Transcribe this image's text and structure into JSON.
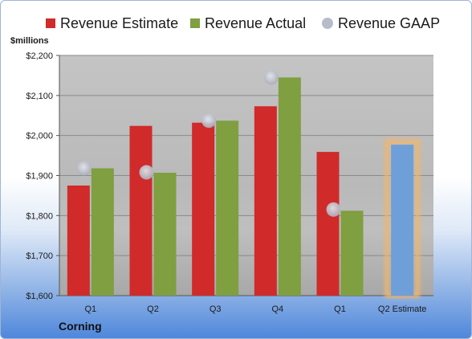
{
  "units_label": "$millions",
  "company": "Corning",
  "legend": [
    {
      "label": "Revenue Estimate",
      "color": "#d02a2a",
      "shape": "square"
    },
    {
      "label": "Revenue Actual",
      "color": "#7f9f40",
      "shape": "square"
    },
    {
      "label": "Revenue GAAP",
      "color": "#b8bcc8",
      "shape": "circle"
    }
  ],
  "chart_data": {
    "type": "bar",
    "title": "",
    "xlabel": "",
    "ylabel": "$millions",
    "ylim": [
      1600,
      2200
    ],
    "yticks": [
      "$1,600",
      "$1,700",
      "$1,800",
      "$1,900",
      "$2,000",
      "$2,100",
      "$2,200"
    ],
    "grid": true,
    "legend_position": "top",
    "categories": [
      "Q1",
      "Q2",
      "Q3",
      "Q4",
      "Q1",
      "Q2 Estimate"
    ],
    "series": [
      {
        "name": "Revenue Estimate",
        "type": "bar",
        "color": "#d02a2a",
        "values": [
          1875,
          2024,
          2032,
          2073,
          1959,
          null
        ]
      },
      {
        "name": "Revenue Actual",
        "type": "bar",
        "color": "#7f9f40",
        "values": [
          1918,
          1907,
          2037,
          2145,
          1812,
          null
        ]
      },
      {
        "name": "Revenue GAAP",
        "type": "scatter",
        "color": "#b8bcc8",
        "values": [
          1918,
          1908,
          2037,
          2145,
          1815,
          null
        ]
      },
      {
        "name": "Q2 Estimate",
        "type": "bar",
        "color": "#6f9fd8",
        "highlight": "#f2b66b",
        "values": [
          null,
          null,
          null,
          null,
          null,
          1977
        ]
      }
    ]
  }
}
